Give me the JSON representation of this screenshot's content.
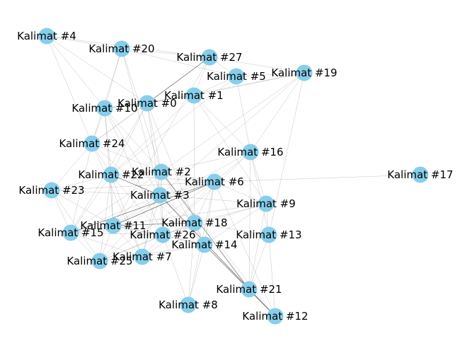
{
  "graph": {
    "colors": {
      "node": "#87CEEB",
      "edge": "#555555",
      "label": "#000000",
      "background": "#ffffff"
    },
    "nodes": [
      {
        "id": 0,
        "label": "Kalimat #0"
      },
      {
        "id": 1,
        "label": "Kalimat #1"
      },
      {
        "id": 2,
        "label": "Kalimat #2"
      },
      {
        "id": 3,
        "label": "Kalimat #3"
      },
      {
        "id": 4,
        "label": "Kalimat #4"
      },
      {
        "id": 5,
        "label": "Kalimat #5"
      },
      {
        "id": 6,
        "label": "Kalimat #6"
      },
      {
        "id": 7,
        "label": "Kalimat #7"
      },
      {
        "id": 8,
        "label": "Kalimat #8"
      },
      {
        "id": 9,
        "label": "Kalimat #9"
      },
      {
        "id": 10,
        "label": "Kalimat #10"
      },
      {
        "id": 11,
        "label": "Kalimat #11"
      },
      {
        "id": 12,
        "label": "Kalimat #12"
      },
      {
        "id": 13,
        "label": "Kalimat #13"
      },
      {
        "id": 14,
        "label": "Kalimat #14"
      },
      {
        "id": 15,
        "label": "Kalimat #15"
      },
      {
        "id": 16,
        "label": "Kalimat #16"
      },
      {
        "id": 17,
        "label": "Kalimat #17"
      },
      {
        "id": 18,
        "label": "Kalimat #18"
      },
      {
        "id": 19,
        "label": "Kalimat #19"
      },
      {
        "id": 20,
        "label": "Kalimat #20"
      },
      {
        "id": 21,
        "label": "Kalimat #21"
      },
      {
        "id": 22,
        "label": "Kalimat #22"
      },
      {
        "id": 23,
        "label": "Kalimat #23"
      },
      {
        "id": 24,
        "label": "Kalimat #24"
      },
      {
        "id": 25,
        "label": "Kalimat #25"
      },
      {
        "id": 26,
        "label": "Kalimat #26"
      },
      {
        "id": 27,
        "label": "Kalimat #27"
      }
    ],
    "edges": [
      [
        4,
        10
      ],
      [
        4,
        20
      ],
      [
        4,
        0
      ],
      [
        4,
        27
      ],
      [
        4,
        24
      ],
      [
        20,
        10
      ],
      [
        20,
        27
      ],
      [
        20,
        5
      ],
      [
        20,
        24
      ],
      [
        20,
        3
      ],
      [
        20,
        2
      ],
      [
        27,
        0
      ],
      [
        27,
        5
      ],
      [
        27,
        19
      ],
      [
        27,
        11
      ],
      [
        27,
        24
      ],
      [
        27,
        1
      ],
      [
        5,
        19
      ],
      [
        5,
        1
      ],
      [
        5,
        16
      ],
      [
        5,
        22
      ],
      [
        19,
        1
      ],
      [
        19,
        16
      ],
      [
        19,
        2
      ],
      [
        19,
        3
      ],
      [
        19,
        0
      ],
      [
        19,
        13
      ],
      [
        0,
        1
      ],
      [
        0,
        10
      ],
      [
        0,
        24
      ],
      [
        0,
        22
      ],
      [
        0,
        3
      ],
      [
        0,
        14
      ],
      [
        0,
        2
      ],
      [
        0,
        15
      ],
      [
        1,
        10
      ],
      [
        1,
        16
      ],
      [
        1,
        18
      ],
      [
        1,
        22
      ],
      [
        1,
        9
      ],
      [
        10,
        24
      ],
      [
        10,
        22
      ],
      [
        10,
        2
      ],
      [
        10,
        3
      ],
      [
        10,
        11
      ],
      [
        10,
        26
      ],
      [
        24,
        22
      ],
      [
        24,
        23
      ],
      [
        24,
        2
      ],
      [
        24,
        14
      ],
      [
        24,
        7
      ],
      [
        24,
        15
      ],
      [
        16,
        6
      ],
      [
        16,
        2
      ],
      [
        16,
        13
      ],
      [
        16,
        21
      ],
      [
        16,
        26
      ],
      [
        16,
        11
      ],
      [
        16,
        9
      ],
      [
        22,
        23
      ],
      [
        22,
        2
      ],
      [
        22,
        3
      ],
      [
        22,
        11
      ],
      [
        22,
        15
      ],
      [
        22,
        26
      ],
      [
        22,
        7
      ],
      [
        22,
        6
      ],
      [
        22,
        25
      ],
      [
        2,
        3
      ],
      [
        2,
        6
      ],
      [
        2,
        11
      ],
      [
        2,
        26
      ],
      [
        2,
        14
      ],
      [
        2,
        15
      ],
      [
        2,
        7
      ],
      [
        2,
        12
      ],
      [
        2,
        21
      ],
      [
        6,
        3
      ],
      [
        6,
        9
      ],
      [
        6,
        17
      ],
      [
        6,
        18
      ],
      [
        6,
        14
      ],
      [
        6,
        8
      ],
      [
        6,
        11
      ],
      [
        6,
        25
      ],
      [
        6,
        26
      ],
      [
        6,
        12
      ],
      [
        6,
        15
      ],
      [
        3,
        23
      ],
      [
        3,
        11
      ],
      [
        3,
        26
      ],
      [
        3,
        7
      ],
      [
        3,
        14
      ],
      [
        3,
        18
      ],
      [
        3,
        15
      ],
      [
        3,
        12
      ],
      [
        3,
        21
      ],
      [
        3,
        9
      ],
      [
        3,
        25
      ],
      [
        23,
        15
      ],
      [
        23,
        11
      ],
      [
        23,
        25
      ],
      [
        23,
        6
      ],
      [
        9,
        18
      ],
      [
        9,
        14
      ],
      [
        9,
        13
      ],
      [
        9,
        26
      ],
      [
        9,
        11
      ],
      [
        9,
        21
      ],
      [
        11,
        15
      ],
      [
        11,
        26
      ],
      [
        11,
        7
      ],
      [
        11,
        25
      ],
      [
        11,
        14
      ],
      [
        11,
        18
      ],
      [
        15,
        7
      ],
      [
        15,
        26
      ],
      [
        15,
        25
      ],
      [
        26,
        7
      ],
      [
        26,
        14
      ],
      [
        26,
        18
      ],
      [
        26,
        25
      ],
      [
        26,
        8
      ],
      [
        18,
        14
      ],
      [
        18,
        13
      ],
      [
        18,
        7
      ],
      [
        18,
        25
      ],
      [
        14,
        21
      ],
      [
        14,
        8
      ],
      [
        14,
        12
      ],
      [
        14,
        7
      ],
      [
        13,
        21
      ],
      [
        13,
        12
      ],
      [
        21,
        12
      ],
      [
        7,
        25
      ],
      [
        25,
        14
      ],
      [
        8,
        18
      ]
    ],
    "dark_edges": [
      [
        0,
        27
      ],
      [
        3,
        22
      ],
      [
        3,
        12
      ],
      [
        2,
        21
      ],
      [
        6,
        15
      ],
      [
        11,
        18
      ],
      [
        6,
        11
      ],
      [
        14,
        12
      ]
    ]
  }
}
